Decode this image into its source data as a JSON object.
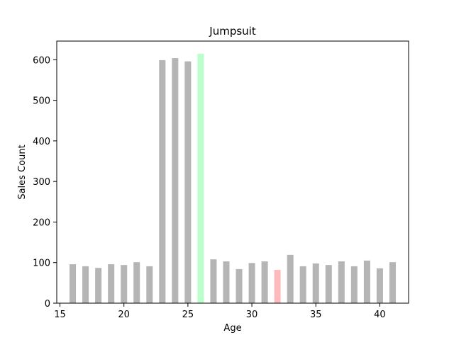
{
  "chart_data": {
    "type": "bar",
    "title": "Jumpsuit",
    "xlabel": "Age",
    "ylabel": "Sales Count",
    "x": [
      16,
      17,
      18,
      19,
      20,
      21,
      22,
      23,
      24,
      25,
      26,
      27,
      28,
      29,
      30,
      31,
      32,
      33,
      34,
      35,
      36,
      37,
      38,
      39,
      40,
      41
    ],
    "values": [
      96,
      91,
      87,
      96,
      94,
      101,
      91,
      599,
      604,
      596,
      615,
      108,
      103,
      84,
      99,
      103,
      82,
      119,
      91,
      98,
      94,
      103,
      91,
      105,
      86,
      101
    ],
    "xlim": [
      14.75,
      42.25
    ],
    "ylim": [
      0,
      646
    ],
    "xticks": [
      15,
      20,
      25,
      30,
      35,
      40
    ],
    "yticks": [
      0,
      100,
      200,
      300,
      400,
      500,
      600
    ],
    "grid": false,
    "legend": "none",
    "colors": {
      "default": "#b5b5b5",
      "highlight_max": "#bbffcc",
      "highlight_min": "#ffbbbb"
    }
  }
}
